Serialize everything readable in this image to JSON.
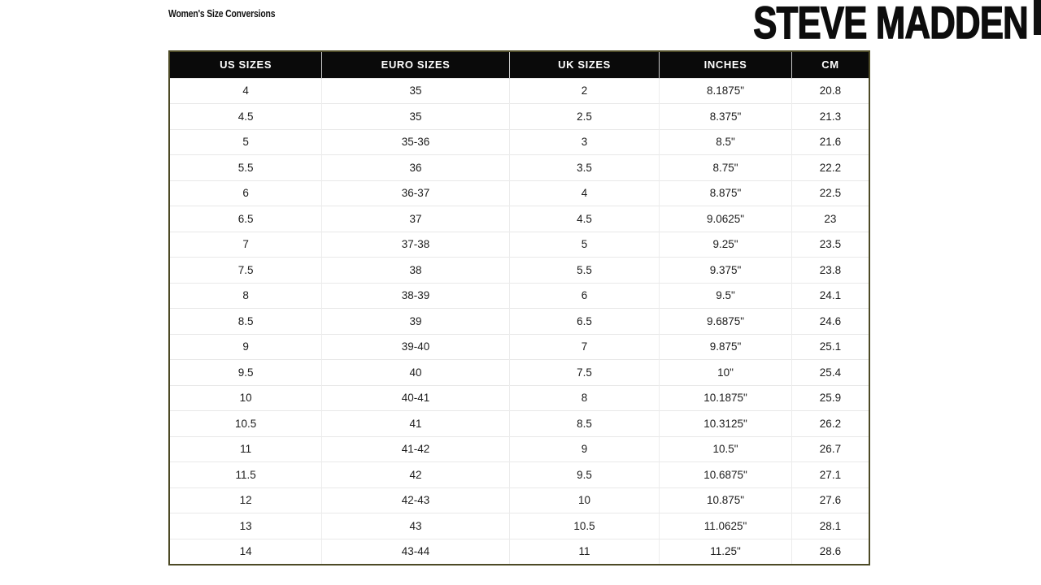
{
  "page": {
    "title": "Women's Size Conversions"
  },
  "brand": {
    "logo_text": "STEVE MADDEN"
  },
  "colors": {
    "header_bg": "#0a0a0a",
    "header_text": "#ffffff",
    "table_border": "#4d4a26",
    "row_line": "#e8e8e8",
    "col_line": "#ececec",
    "body_text": "#1c1c1c",
    "scrollbar": "#111111"
  },
  "size_chart": {
    "columns": [
      "US SIZES",
      "EURO SIZES",
      "UK SIZES",
      "INCHES",
      "CM"
    ],
    "rows": [
      [
        "4",
        "35",
        "2",
        "8.1875\"",
        "20.8"
      ],
      [
        "4.5",
        "35",
        "2.5",
        "8.375\"",
        "21.3"
      ],
      [
        "5",
        "35-36",
        "3",
        "8.5\"",
        "21.6"
      ],
      [
        "5.5",
        "36",
        "3.5",
        "8.75\"",
        "22.2"
      ],
      [
        "6",
        "36-37",
        "4",
        "8.875\"",
        "22.5"
      ],
      [
        "6.5",
        "37",
        "4.5",
        "9.0625\"",
        "23"
      ],
      [
        "7",
        "37-38",
        "5",
        "9.25\"",
        "23.5"
      ],
      [
        "7.5",
        "38",
        "5.5",
        "9.375\"",
        "23.8"
      ],
      [
        "8",
        "38-39",
        "6",
        "9.5\"",
        "24.1"
      ],
      [
        "8.5",
        "39",
        "6.5",
        "9.6875\"",
        "24.6"
      ],
      [
        "9",
        "39-40",
        "7",
        "9.875\"",
        "25.1"
      ],
      [
        "9.5",
        "40",
        "7.5",
        "10\"",
        "25.4"
      ],
      [
        "10",
        "40-41",
        "8",
        "10.1875\"",
        "25.9"
      ],
      [
        "10.5",
        "41",
        "8.5",
        "10.3125\"",
        "26.2"
      ],
      [
        "11",
        "41-42",
        "9",
        "10.5\"",
        "26.7"
      ],
      [
        "11.5",
        "42",
        "9.5",
        "10.6875\"",
        "27.1"
      ],
      [
        "12",
        "42-43",
        "10",
        "10.875\"",
        "27.6"
      ],
      [
        "13",
        "43",
        "10.5",
        "11.0625\"",
        "28.1"
      ],
      [
        "14",
        "43-44",
        "11",
        "11.25\"",
        "28.6"
      ]
    ]
  }
}
